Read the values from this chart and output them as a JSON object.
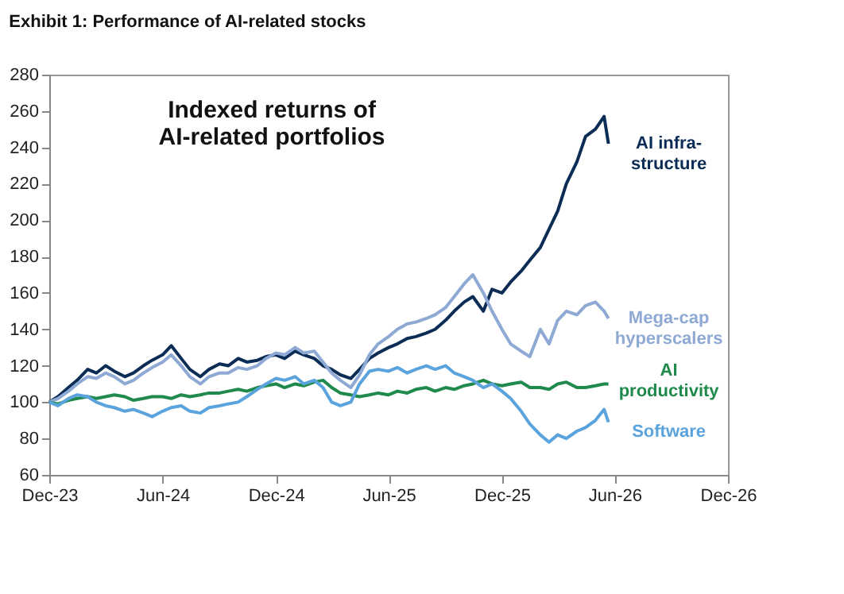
{
  "chart_data": {
    "type": "line",
    "title": "Exhibit 1: Performance of AI-related stocks",
    "subtitle": "Indexed returns of\nAI-related portfolios",
    "x": [
      "2023-12-01",
      "2023-12-15",
      "2024-01-01",
      "2024-01-15",
      "2024-02-01",
      "2024-02-15",
      "2024-03-01",
      "2024-03-15",
      "2024-04-01",
      "2024-04-15",
      "2024-05-01",
      "2024-05-15",
      "2024-06-01",
      "2024-06-15",
      "2024-07-01",
      "2024-07-15",
      "2024-08-01",
      "2024-08-15",
      "2024-09-01",
      "2024-09-15",
      "2024-10-01",
      "2024-10-15",
      "2024-11-01",
      "2024-11-15",
      "2024-12-01",
      "2024-12-15",
      "2025-01-01",
      "2025-01-15",
      "2025-02-01",
      "2025-02-15",
      "2025-03-01",
      "2025-03-15",
      "2025-04-01",
      "2025-04-15",
      "2025-05-01",
      "2025-05-15",
      "2025-06-01",
      "2025-06-15",
      "2025-07-01",
      "2025-07-15",
      "2025-08-01",
      "2025-08-15",
      "2025-09-01",
      "2025-09-15",
      "2025-10-01",
      "2025-10-15",
      "2025-11-01",
      "2025-11-15",
      "2025-12-01",
      "2025-12-15",
      "2026-01-01",
      "2026-01-15",
      "2026-02-01",
      "2026-02-15",
      "2026-03-01",
      "2026-03-15",
      "2026-04-01",
      "2026-04-15",
      "2026-05-01",
      "2026-05-15",
      "2026-05-22"
    ],
    "series": [
      {
        "name": "AI infra-\nstructure",
        "color": "#0b2d55",
        "values": [
          100,
          103,
          108,
          112,
          118,
          116,
          120,
          117,
          114,
          116,
          120,
          123,
          126,
          131,
          124,
          118,
          114,
          118,
          121,
          120,
          124,
          122,
          123,
          125,
          126,
          124,
          128,
          126,
          124,
          120,
          118,
          115,
          113,
          118,
          124,
          127,
          130,
          132,
          135,
          136,
          138,
          140,
          145,
          150,
          155,
          158,
          150,
          162,
          160,
          166,
          172,
          178,
          185,
          195,
          205,
          220,
          232,
          246,
          250,
          257,
          242
        ]
      },
      {
        "name": "Mega-cap\nhyperscalers",
        "color": "#8ea9d3",
        "values": [
          100,
          102,
          106,
          110,
          114,
          113,
          116,
          114,
          110,
          112,
          116,
          119,
          122,
          126,
          120,
          114,
          110,
          114,
          116,
          116,
          119,
          118,
          120,
          124,
          127,
          126,
          130,
          127,
          128,
          122,
          116,
          112,
          108,
          115,
          126,
          132,
          136,
          140,
          143,
          144,
          146,
          148,
          152,
          158,
          165,
          170,
          160,
          150,
          140,
          132,
          128,
          125,
          140,
          132,
          145,
          150,
          148,
          153,
          155,
          150,
          146
        ]
      },
      {
        "name": "AI\nproductivity",
        "color": "#1f8a4c",
        "values": [
          100,
          99,
          101,
          102,
          103,
          102,
          103,
          104,
          103,
          101,
          102,
          103,
          103,
          102,
          104,
          103,
          104,
          105,
          105,
          106,
          107,
          106,
          108,
          109,
          110,
          108,
          110,
          109,
          111,
          112,
          108,
          105,
          104,
          103,
          104,
          105,
          104,
          106,
          105,
          107,
          108,
          106,
          108,
          107,
          109,
          110,
          112,
          110,
          109,
          110,
          111,
          108,
          108,
          107,
          110,
          111,
          108,
          108,
          109,
          110,
          110
        ]
      },
      {
        "name": "Software",
        "color": "#5ba3dc",
        "values": [
          100,
          98,
          102,
          104,
          103,
          100,
          98,
          97,
          95,
          96,
          94,
          92,
          95,
          97,
          98,
          95,
          94,
          97,
          98,
          99,
          100,
          103,
          107,
          110,
          113,
          112,
          114,
          110,
          112,
          108,
          100,
          98,
          100,
          110,
          117,
          118,
          117,
          119,
          116,
          118,
          120,
          118,
          120,
          116,
          114,
          112,
          108,
          110,
          106,
          102,
          95,
          88,
          82,
          78,
          82,
          80,
          84,
          86,
          90,
          96,
          89
        ]
      }
    ],
    "xlim": [
      "2023-12-01",
      "2026-12-01"
    ],
    "xticks": [
      {
        "value": "2023-12-01",
        "label": "Dec-23"
      },
      {
        "value": "2024-06-01",
        "label": "Jun-24"
      },
      {
        "value": "2024-12-01",
        "label": "Dec-24"
      },
      {
        "value": "2025-06-01",
        "label": "Jun-25"
      },
      {
        "value": "2025-12-01",
        "label": "Dec-25"
      },
      {
        "value": "2026-06-01",
        "label": "Jun-26"
      },
      {
        "value": "2026-12-01",
        "label": "Dec-26"
      }
    ],
    "ylim": [
      60,
      280
    ],
    "yticks": [
      60,
      80,
      100,
      120,
      140,
      160,
      180,
      200,
      220,
      240,
      260,
      280
    ],
    "grid": false,
    "legend": false
  }
}
